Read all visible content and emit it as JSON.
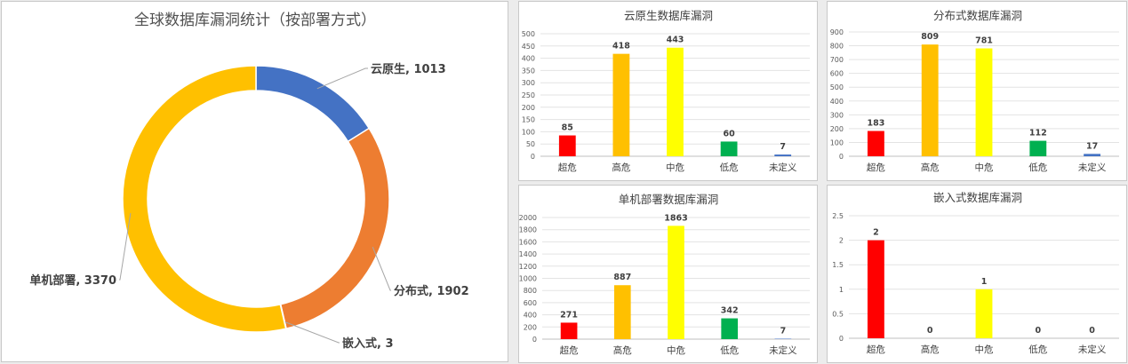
{
  "chart_data": [
    {
      "type": "pie",
      "variant": "doughnut",
      "title": "全球数据库漏洞统计（按部署方式）",
      "legend": "none",
      "slices": [
        {
          "name": "云原生",
          "value": 1013,
          "label": "云原生, 1013",
          "color": "#4472c4"
        },
        {
          "name": "分布式",
          "value": 1902,
          "label": "分布式, 1902",
          "color": "#ed7d31"
        },
        {
          "name": "嵌入式",
          "value": 3,
          "label": "嵌入式, 3",
          "color": "#a5a5a5"
        },
        {
          "name": "单机部署",
          "value": 3370,
          "label": "单机部署, 3370",
          "color": "#ffc000"
        }
      ]
    },
    {
      "type": "bar",
      "title": "云原生数据库漏洞",
      "categories": [
        "超危",
        "高危",
        "中危",
        "低危",
        "未定义"
      ],
      "values": [
        85,
        418,
        443,
        60,
        7
      ],
      "colors": [
        "#ff0000",
        "#ffc000",
        "#ffff00",
        "#00b050",
        "#4472c4"
      ],
      "ylim": [
        0,
        500
      ],
      "ytick_step": 50,
      "grid": true
    },
    {
      "type": "bar",
      "title": "分布式数据库漏洞",
      "categories": [
        "超危",
        "高危",
        "中危",
        "低危",
        "未定义"
      ],
      "values": [
        183,
        809,
        781,
        112,
        17
      ],
      "colors": [
        "#ff0000",
        "#ffc000",
        "#ffff00",
        "#00b050",
        "#4472c4"
      ],
      "ylim": [
        0,
        900
      ],
      "ytick_step": 100,
      "grid": true
    },
    {
      "type": "bar",
      "title": "单机部署数据库漏洞",
      "categories": [
        "超危",
        "高危",
        "中危",
        "低危",
        "未定义"
      ],
      "values": [
        271,
        887,
        1863,
        342,
        7
      ],
      "colors": [
        "#ff0000",
        "#ffc000",
        "#ffff00",
        "#00b050",
        "#4472c4"
      ],
      "ylim": [
        0,
        2000
      ],
      "ytick_step": 200,
      "grid": true
    },
    {
      "type": "bar",
      "title": "嵌入式数据库漏洞",
      "categories": [
        "超危",
        "高危",
        "中危",
        "低危",
        "未定义"
      ],
      "values": [
        2,
        0,
        1,
        0,
        0
      ],
      "colors": [
        "#ff0000",
        "#ffc000",
        "#ffff00",
        "#00b050",
        "#4472c4"
      ],
      "ylim": [
        0,
        2.5
      ],
      "ytick_step": 0.5,
      "grid": true
    }
  ]
}
